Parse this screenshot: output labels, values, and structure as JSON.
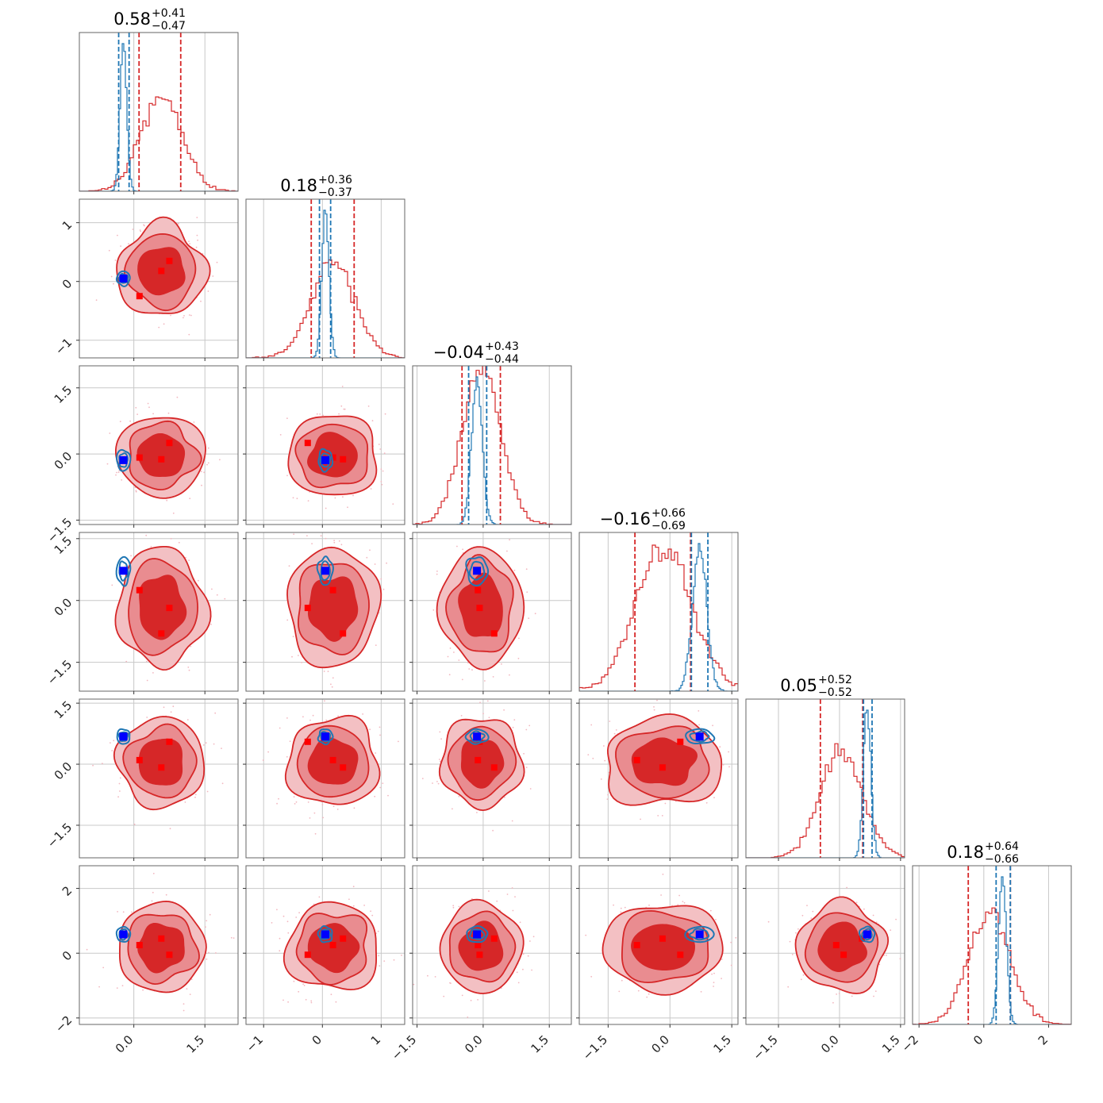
{
  "chart_data": {
    "type": "corner",
    "n_params": 6,
    "colors": {
      "posterior_a": "#d62728",
      "posterior_b": "#1f77b4",
      "truth_marker": "#0000ff",
      "grid": "#c8c8c8",
      "scatter": "#f2b8c0"
    },
    "grid": true,
    "titles": [
      {
        "median": "0.58",
        "plus": "+0.41",
        "minus": "−0.47"
      },
      {
        "median": "0.18",
        "plus": "+0.36",
        "minus": "−0.37"
      },
      {
        "median": "−0.04",
        "plus": "+0.43",
        "minus": "−0.44"
      },
      {
        "median": "−0.16",
        "plus": "+0.66",
        "minus": "−0.69"
      },
      {
        "median": "0.05",
        "plus": "+0.52",
        "minus": "−0.52"
      },
      {
        "median": "0.18",
        "plus": "+0.64",
        "minus": "−0.66"
      }
    ],
    "params": [
      {
        "range": [
          -1.15,
          2.2
        ],
        "xticks": [
          0.0,
          1.5
        ],
        "xtick_labels": [
          "0.0",
          "1.5"
        ],
        "yticks": [],
        "ytick_labels": []
      },
      {
        "range": [
          -1.3,
          1.4
        ],
        "xticks": [
          -1,
          0,
          1
        ],
        "xtick_labels": [
          "−1",
          "0",
          "1"
        ],
        "yticks": [
          -1,
          0,
          1
        ],
        "ytick_labels": [
          "−1",
          "0",
          "1"
        ]
      },
      {
        "range": [
          -1.6,
          2.0
        ],
        "xticks": [
          -1.5,
          0.0,
          1.5
        ],
        "xtick_labels": [
          "−1.5",
          "0.0",
          "1.5"
        ],
        "yticks": [
          -1.5,
          0.0,
          1.5
        ],
        "ytick_labels": [
          "−1.5",
          "0.0",
          "1.5"
        ]
      },
      {
        "range": [
          -2.2,
          1.65
        ],
        "xticks": [
          -1.5,
          0.0,
          1.5
        ],
        "xtick_labels": [
          "−1.5",
          "0.0",
          "1.5"
        ],
        "yticks": [
          -1.5,
          0.0,
          1.5
        ],
        "ytick_labels": [
          "−1.5",
          "0.0",
          "1.5"
        ]
      },
      {
        "range": [
          -2.3,
          1.6
        ],
        "xticks": [
          -1.5,
          0.0,
          1.5
        ],
        "xtick_labels": [
          "−1.5",
          "0.0",
          "1.5"
        ],
        "yticks": [
          -1.5,
          0.0,
          1.5
        ],
        "ytick_labels": [
          "−1.5",
          "0.0",
          "1.5"
        ]
      },
      {
        "range": [
          -2.2,
          2.7
        ],
        "xticks": [
          -2,
          0,
          2
        ],
        "xtick_labels": [
          "−2",
          "0",
          "2"
        ],
        "yticks": [
          -2,
          0,
          2
        ],
        "ytick_labels": [
          "−2",
          "0",
          "2"
        ]
      }
    ],
    "red_posterior": {
      "mean": [
        0.58,
        0.18,
        -0.04,
        -0.16,
        0.05,
        0.18
      ],
      "sigma": [
        0.44,
        0.37,
        0.44,
        0.68,
        0.52,
        0.65
      ],
      "quantile_lines": [
        [
          0.11,
          0.99
        ],
        [
          -0.19,
          0.54
        ],
        [
          -0.48,
          0.39
        ],
        [
          -0.85,
          0.5
        ],
        [
          -0.47,
          0.57
        ],
        [
          -0.48,
          0.82
        ]
      ]
    },
    "blue_posterior": {
      "mean": [
        -0.22,
        0.05,
        -0.14,
        0.72,
        0.68,
        0.58
      ],
      "sigma": [
        0.07,
        0.06,
        0.12,
        0.17,
        0.09,
        0.12
      ],
      "quantile_lines": [
        [
          -0.32,
          -0.1
        ],
        [
          -0.05,
          0.14
        ],
        [
          -0.33,
          0.08
        ],
        [
          0.52,
          0.92
        ],
        [
          0.59,
          0.8
        ],
        [
          0.38,
          0.82
        ]
      ]
    },
    "truth": [
      -0.22,
      0.05,
      -0.14,
      0.72,
      0.68,
      0.58
    ],
    "red_markers": [
      {
        "p": 0,
        "x": [
          0.75,
          0.58,
          0.12
        ],
        "y": null
      },
      {
        "p": 1,
        "x": [
          -0.25,
          0.35,
          0.18
        ],
        "y": null
      },
      {
        "p": 2,
        "x": [
          -0.08,
          0.25,
          -0.12
        ],
        "y": null
      },
      {
        "p": 3,
        "x": [
          0.25,
          -0.18,
          -0.8
        ],
        "y": null
      },
      {
        "p": 4,
        "x": [
          0.1,
          0.55,
          -0.08
        ],
        "y": null
      },
      {
        "p": 5,
        "x": [
          0.25,
          -0.05,
          0.45
        ],
        "y": null
      }
    ]
  }
}
